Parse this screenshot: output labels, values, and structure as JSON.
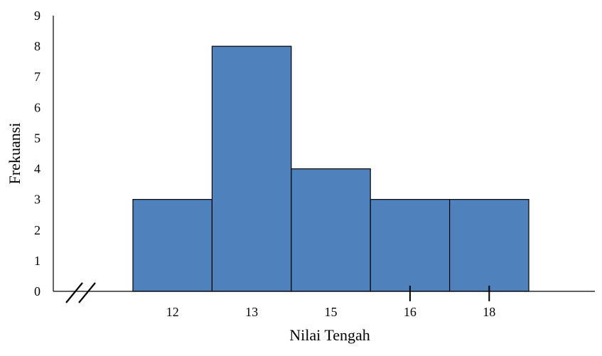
{
  "chart_data": {
    "type": "bar",
    "categories": [
      "12",
      "13",
      "15",
      "16",
      "18"
    ],
    "values": [
      3,
      8,
      4,
      3,
      3
    ],
    "xlabel": "Nilai Tengah",
    "ylabel": "Frekuansi",
    "ylim": [
      0,
      9
    ],
    "y_ticks": [
      "0",
      "1",
      "2",
      "3",
      "4",
      "5",
      "6",
      "7",
      "8",
      "9"
    ],
    "bar_gap": 0,
    "grid": false,
    "axis_break": true,
    "colors": {
      "bar_fill": "#4F81BD",
      "bar_stroke": "#000000",
      "axis": "#000000"
    }
  }
}
